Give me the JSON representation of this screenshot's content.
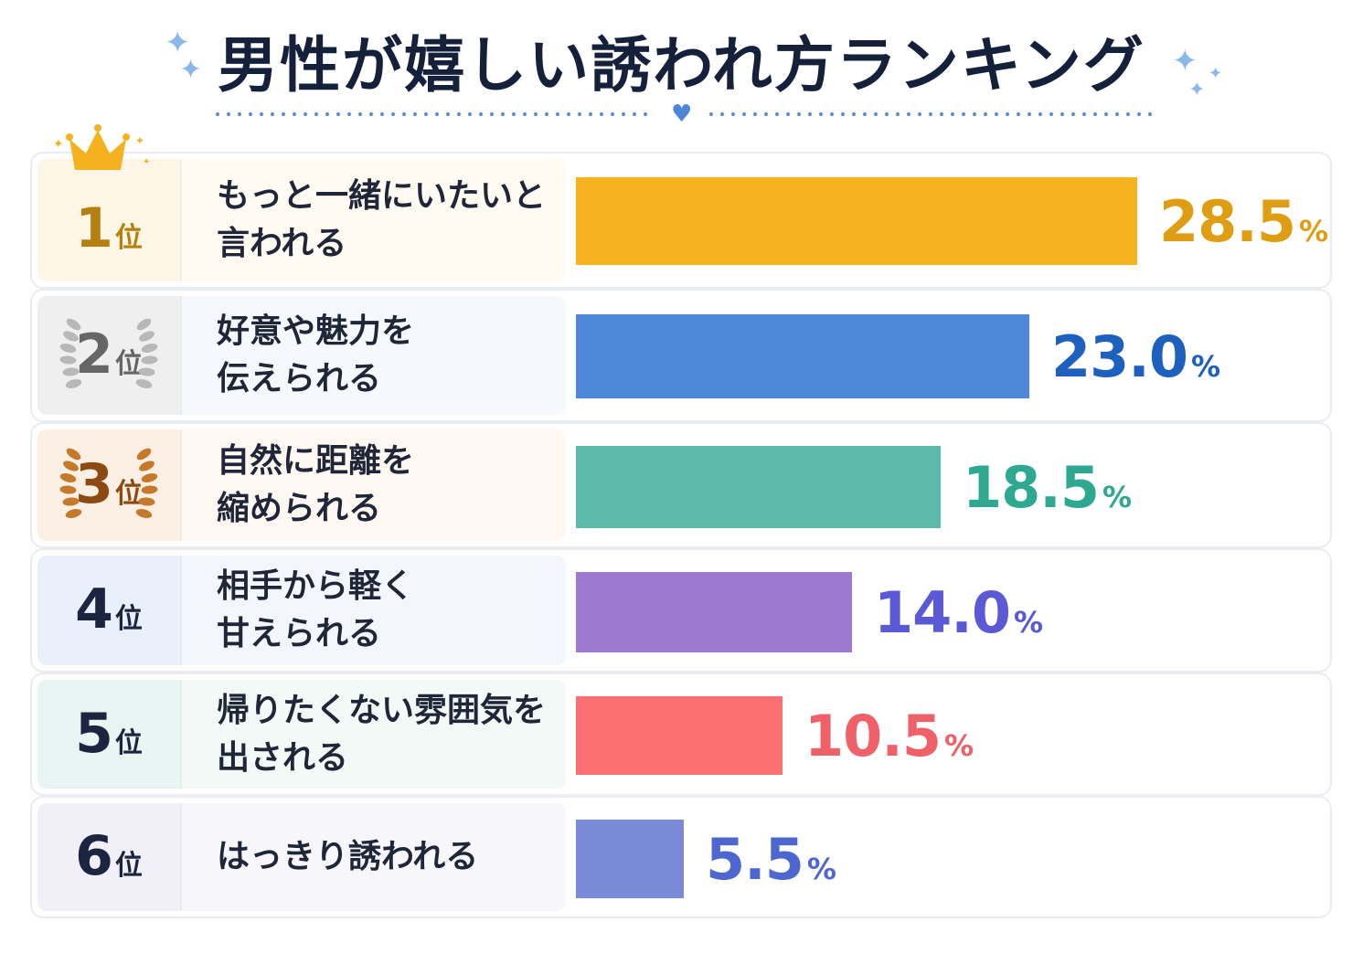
{
  "title": "男性が嬉しい誘われ方ランキング",
  "colors": {
    "title": "#15203b",
    "label": "#1f2637"
  },
  "chart_data": {
    "type": "bar",
    "orientation": "horizontal",
    "title": "男性が嬉しい誘われ方ランキング",
    "unit": "%",
    "rank_suffix": "位",
    "categories": [
      "もっと一緒にいたいと言われる",
      "好意や魅力を伝えられる",
      "自然に距離を縮められる",
      "相手から軽く甘えられる",
      "帰りたくない雰囲気を出される",
      "はっきり誘われる"
    ],
    "values": [
      28.5,
      23.0,
      18.5,
      14.0,
      10.5,
      5.5
    ],
    "rows": [
      {
        "rank": "1",
        "label": "もっと一緒にいたいと\n言われる",
        "value": "28.5",
        "bar_color": "#f6b21f",
        "value_color": "#df9d14",
        "rank_color": "#b4800f",
        "rank_bg": "#fdf6e6",
        "label_bg": "#fffbf3",
        "badge": "crown-icon"
      },
      {
        "rank": "2",
        "label": "好意や魅力を\n伝えられる",
        "value": "23.0",
        "bar_color": "#4f87d9",
        "value_color": "#1e60bd",
        "rank_color": "#666666",
        "rank_bg": "#efefef",
        "label_bg": "#f5f8fd",
        "badge": "silver-laurel-icon"
      },
      {
        "rank": "3",
        "label": "自然に距離を\n縮められる",
        "value": "18.5",
        "bar_color": "#5cbaaa",
        "value_color": "#2fa892",
        "rank_color": "#8c4a12",
        "rank_bg": "#fcefe4",
        "label_bg": "#fff8f2",
        "badge": "bronze-laurel-icon"
      },
      {
        "rank": "4",
        "label": "相手から軽く\n甘えられる",
        "value": "14.0",
        "bar_color": "#9d79d0",
        "value_color": "#5a5ad6",
        "rank_color": "#1b2540",
        "rank_bg": "#eaf0fa",
        "label_bg": "#f3f6fc",
        "badge": ""
      },
      {
        "rank": "5",
        "label": "帰りたくない雰囲気を\n出される",
        "value": "10.5",
        "bar_color": "#fb6e72",
        "value_color": "#f06068",
        "rank_color": "#1b2540",
        "rank_bg": "#e9f5f2",
        "label_bg": "#f2f9f7",
        "badge": ""
      },
      {
        "rank": "6",
        "label": "はっきり誘われる",
        "value": "5.5",
        "bar_color": "#7b8ad6",
        "value_color": "#4e67d0",
        "rank_color": "#1b2540",
        "rank_bg": "#f1eff8",
        "label_bg": "#f7f6fb",
        "badge": ""
      }
    ],
    "xlim": [
      0,
      28.5
    ],
    "grid": false,
    "legend": "none"
  }
}
